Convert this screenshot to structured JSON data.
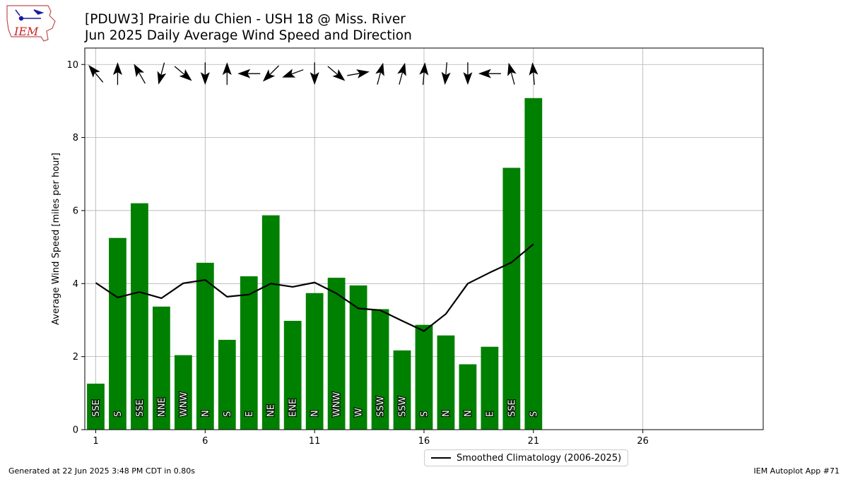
{
  "header": {
    "logo_text": "IEM",
    "title_line1": "[PDUW3] Prairie du Chien - USH 18 @ Miss. River",
    "title_line2": "Jun 2025 Daily Average Wind Speed and Direction"
  },
  "footer": {
    "generated": "Generated at 22 Jun 2025 3:48 PM CDT in 0.80s",
    "app": "IEM Autoplot App #71"
  },
  "colors": {
    "bar": "#008000",
    "climo_line": "#000000",
    "grid": "#b0b0b0"
  },
  "chart_data": {
    "type": "bar",
    "title": "[PDUW3] Prairie du Chien - USH 18 @ Miss. River",
    "subtitle": "Jun 2025 Daily Average Wind Speed and Direction",
    "xlabel": "",
    "ylabel": "Average Wind Speed [miles per hour]",
    "xlim": [
      0.5,
      31.5
    ],
    "ylim": [
      0,
      10.45
    ],
    "xticks": [
      1,
      6,
      11,
      16,
      21,
      26
    ],
    "yticks": [
      0,
      2,
      4,
      6,
      8,
      10
    ],
    "grid": true,
    "legend_position": "bottom-center",
    "days": [
      1,
      2,
      3,
      4,
      5,
      6,
      7,
      8,
      9,
      10,
      11,
      12,
      13,
      14,
      15,
      16,
      17,
      18,
      19,
      20,
      21
    ],
    "series": [
      {
        "name": "Daily Average Wind Speed",
        "type": "bar",
        "values": [
          1.26,
          5.25,
          6.2,
          3.37,
          2.04,
          4.57,
          2.46,
          4.2,
          5.87,
          2.98,
          3.74,
          4.16,
          3.95,
          3.3,
          2.17,
          2.87,
          2.58,
          1.79,
          2.27,
          7.17,
          9.08
        ]
      },
      {
        "name": "Smoothed Climatology (2006-2025)",
        "type": "line",
        "values": [
          4.02,
          3.62,
          3.77,
          3.6,
          4.01,
          4.1,
          3.64,
          3.7,
          4.0,
          3.91,
          4.03,
          3.73,
          3.32,
          3.27,
          2.98,
          2.7,
          3.17,
          4.0,
          4.3,
          4.58,
          5.08
        ]
      }
    ],
    "direction_labels": [
      "SSE",
      "S",
      "SSE",
      "NNE",
      "WNW",
      "N",
      "S",
      "E",
      "NE",
      "ENE",
      "N",
      "WNW",
      "W",
      "SSW",
      "SSW",
      "S",
      "N",
      "N",
      "E",
      "SSE",
      "S"
    ],
    "direction_arrows_deg": [
      320,
      0,
      330,
      195,
      130,
      180,
      0,
      270,
      225,
      250,
      180,
      130,
      80,
      15,
      15,
      5,
      185,
      180,
      270,
      345,
      355
    ]
  }
}
